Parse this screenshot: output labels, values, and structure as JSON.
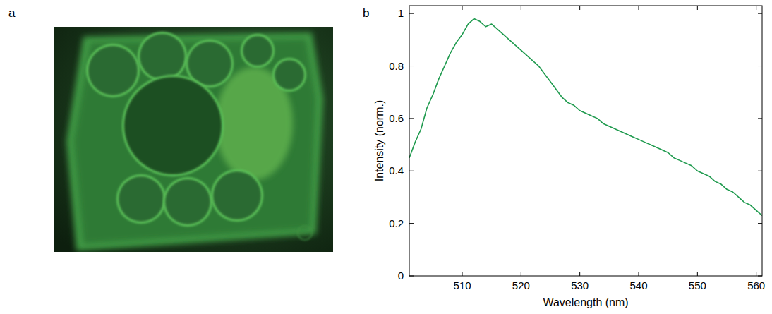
{
  "panel_labels": [
    "a",
    "b"
  ],
  "chart_data": {
    "type": "line",
    "x_label": "Wavelength (nm)",
    "y_label": "Intensity (norm.)",
    "x": [
      501,
      502,
      503,
      504,
      505,
      506,
      507,
      508,
      509,
      510,
      511,
      512,
      513,
      514,
      515,
      516,
      517,
      518,
      519,
      520,
      521,
      522,
      523,
      524,
      525,
      526,
      527,
      528,
      529,
      530,
      531,
      532,
      533,
      534,
      535,
      536,
      537,
      538,
      539,
      540,
      541,
      542,
      543,
      544,
      545,
      546,
      547,
      548,
      549,
      550,
      551,
      552,
      553,
      554,
      555,
      556,
      557,
      558,
      559,
      560,
      561
    ],
    "values": [
      0.45,
      0.51,
      0.56,
      0.64,
      0.69,
      0.75,
      0.8,
      0.85,
      0.89,
      0.92,
      0.96,
      0.98,
      0.97,
      0.95,
      0.96,
      0.94,
      0.92,
      0.9,
      0.88,
      0.86,
      0.84,
      0.82,
      0.8,
      0.77,
      0.74,
      0.71,
      0.68,
      0.66,
      0.65,
      0.63,
      0.62,
      0.61,
      0.6,
      0.58,
      0.57,
      0.56,
      0.55,
      0.54,
      0.53,
      0.52,
      0.51,
      0.5,
      0.49,
      0.48,
      0.47,
      0.45,
      0.44,
      0.43,
      0.42,
      0.4,
      0.39,
      0.38,
      0.36,
      0.35,
      0.33,
      0.32,
      0.3,
      0.28,
      0.27,
      0.25,
      0.23
    ],
    "color": "#1f9a4e",
    "xlim": [
      501,
      561
    ],
    "xticks": [
      510,
      520,
      530,
      540,
      550,
      560
    ],
    "ylim": [
      0,
      1.03
    ],
    "yticks": [
      0,
      0.2,
      0.4,
      0.6,
      0.8,
      1
    ],
    "grid": false
  }
}
